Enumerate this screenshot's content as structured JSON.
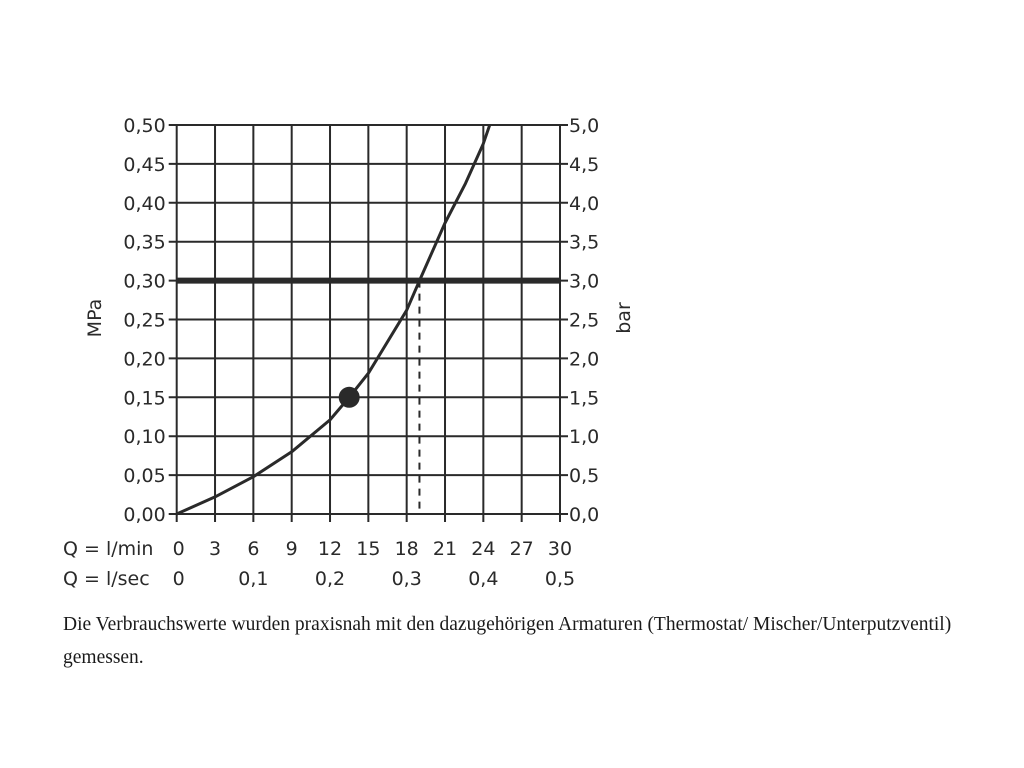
{
  "chart_data": {
    "type": "line",
    "title": "",
    "xlabel_rows": [
      {
        "label": "Q = l/min",
        "ticks": [
          "0",
          "3",
          "6",
          "9",
          "12",
          "15",
          "18",
          "21",
          "24",
          "27",
          "30"
        ],
        "values": [
          0,
          3,
          6,
          9,
          12,
          15,
          18,
          21,
          24,
          27,
          30
        ]
      },
      {
        "label": "Q = l/sec",
        "ticks": [
          "0",
          "0,1",
          "0,2",
          "0,3",
          "0,4",
          "0,5"
        ],
        "values": [
          0,
          6,
          12,
          18,
          24,
          30
        ]
      }
    ],
    "ylabel_left": "MPa",
    "ylabel_right": "bar",
    "yticks_left": [
      "0,00",
      "0,05",
      "0,10",
      "0,15",
      "0,20",
      "0,25",
      "0,30",
      "0,35",
      "0,40",
      "0,45",
      "0,50"
    ],
    "yticks_right": [
      "0,0",
      "0,5",
      "1,0",
      "1,5",
      "2,0",
      "2,5",
      "3,0",
      "3,5",
      "4,0",
      "4,5",
      "5,0"
    ],
    "xlim": [
      0,
      30
    ],
    "ylim": [
      0,
      0.5
    ],
    "grid": true,
    "series": [
      {
        "x": [
          0,
          3,
          6,
          9,
          12,
          13.5,
          15,
          18,
          19,
          21,
          22.6,
          24,
          24.5
        ],
        "y": [
          0,
          0.022,
          0.048,
          0.08,
          0.121,
          0.15,
          0.181,
          0.262,
          0.3,
          0.374,
          0.425,
          0.476,
          0.5
        ]
      }
    ],
    "marker": {
      "x": 13.5,
      "y": 0.15
    },
    "reference_line_y": 0.3,
    "dashed_line_x": 19,
    "color": "#2a2a2a"
  },
  "caption": "Die Verbrauchswerte wurden praxisnah mit den dazugehörigen Armaturen (Thermostat/ Mischer/Unterputzventil) gemessen."
}
